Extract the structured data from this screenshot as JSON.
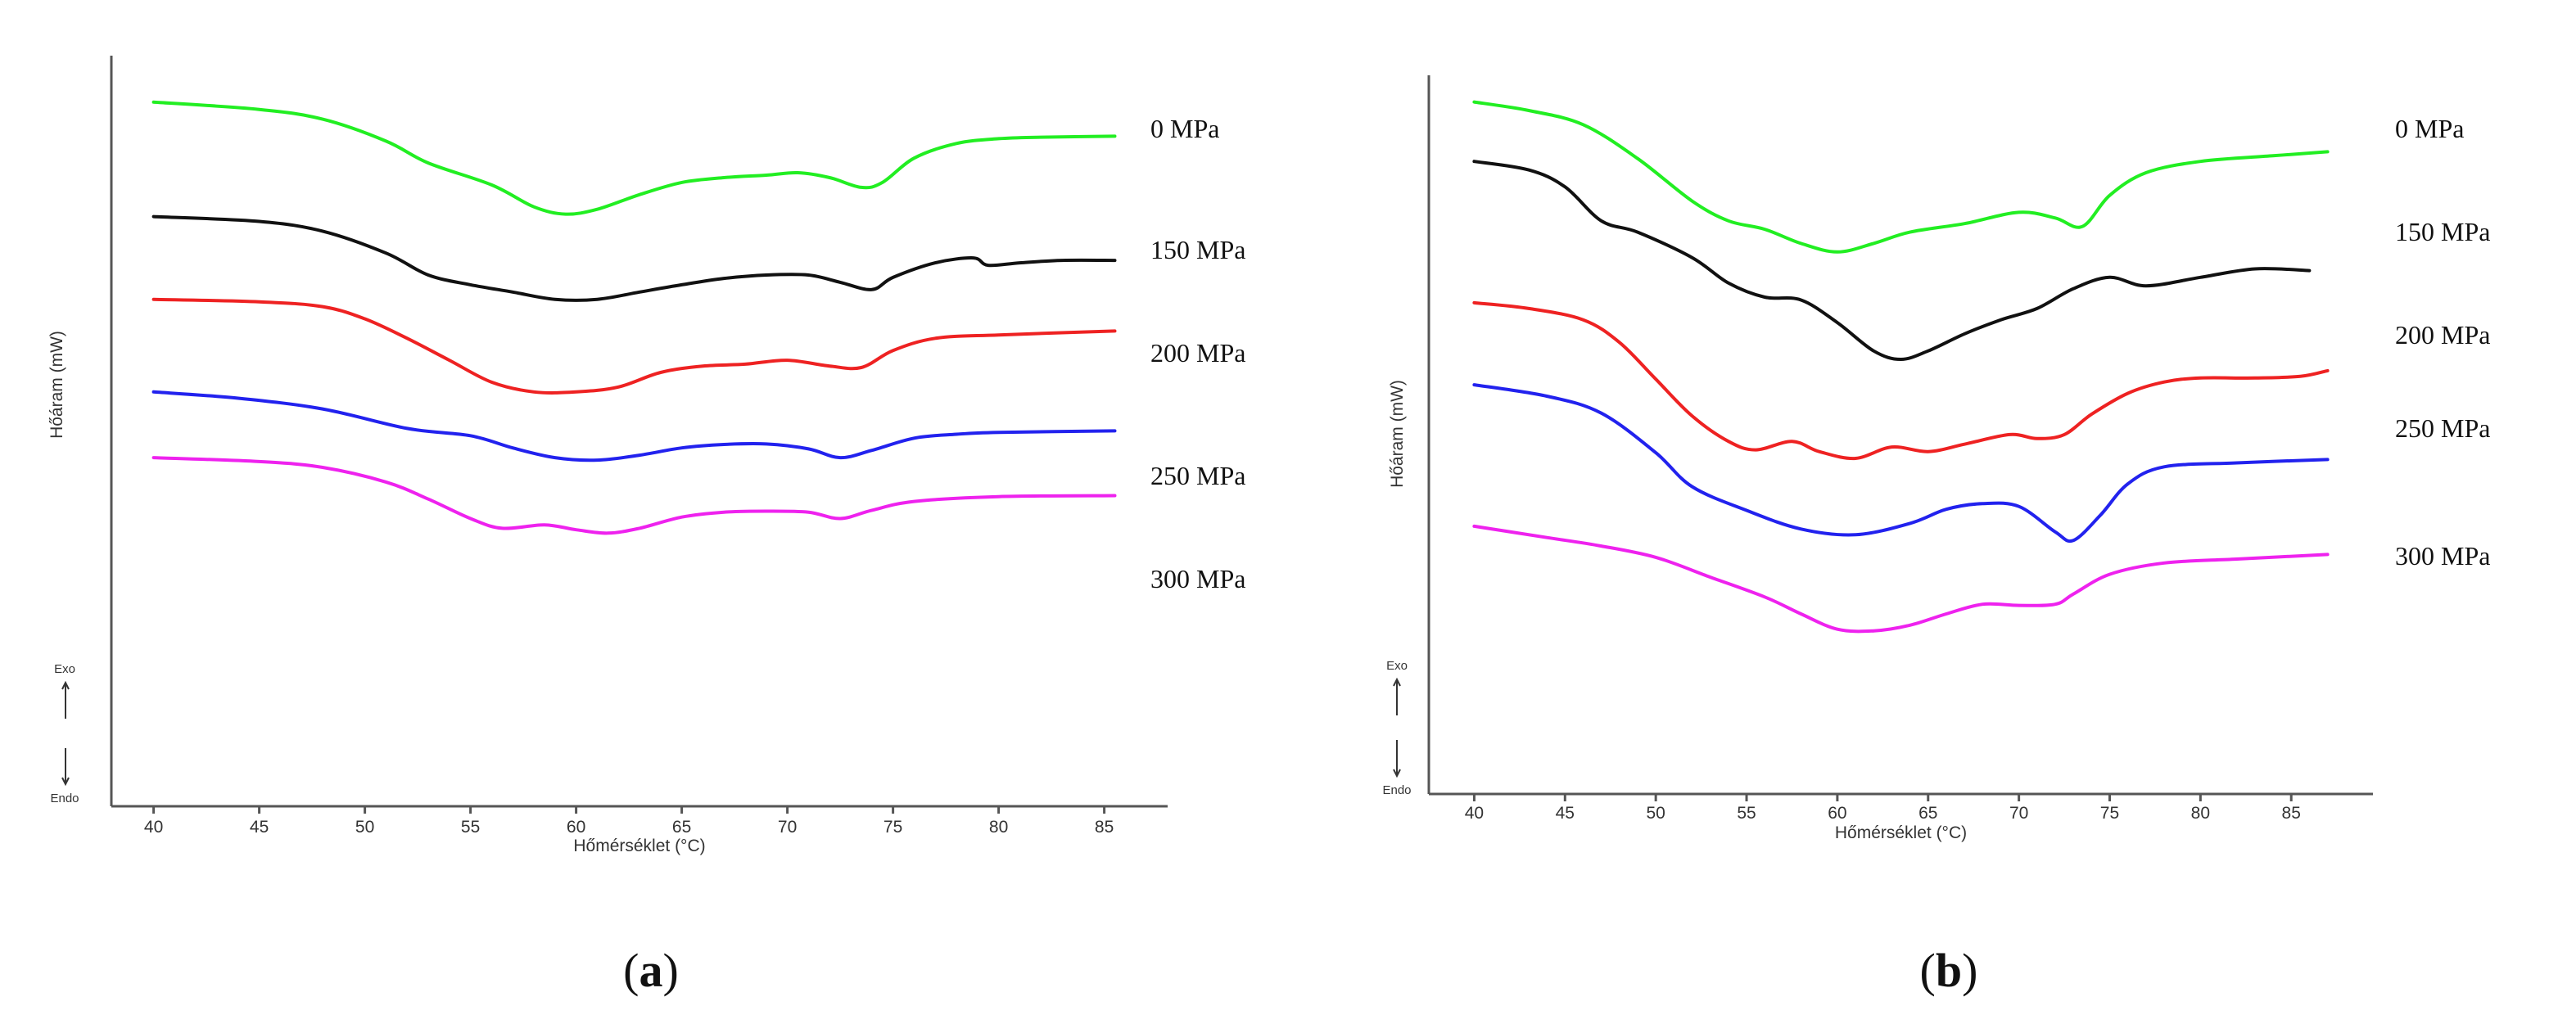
{
  "chart_data": [
    {
      "id": "a",
      "type": "line",
      "caption": {
        "open": "(",
        "letter": "a",
        "close": ")"
      },
      "xlabel": "Hőmérséklet (°C)",
      "ylabel": "Hőáram (mW)",
      "exo_label": "Exo",
      "endo_label": "Endo",
      "xlim": [
        38,
        88
      ],
      "ylim": [
        0,
        10
      ],
      "xticks": [
        40,
        45,
        50,
        55,
        60,
        65,
        70,
        75,
        80,
        85
      ],
      "grid": false,
      "series": [
        {
          "name": "0 MPa",
          "label": "0 MPa",
          "color": "#22ee22",
          "x": [
            40,
            45,
            48,
            51,
            53,
            56,
            58,
            59.5,
            61,
            63,
            65,
            67,
            69,
            70.5,
            72,
            73.5,
            74.5,
            76,
            78,
            80,
            82,
            85.5
          ],
          "y": [
            9.5,
            9.35,
            9.15,
            8.7,
            8.25,
            7.8,
            7.35,
            7.2,
            7.3,
            7.6,
            7.85,
            7.95,
            8.0,
            8.05,
            7.95,
            7.75,
            7.85,
            8.35,
            8.65,
            8.75,
            8.78,
            8.8
          ]
        },
        {
          "name": "150 MPa",
          "label": "150 MPa",
          "color": "#111111",
          "x": [
            40,
            45,
            48,
            51,
            53,
            55,
            57,
            59,
            61,
            63,
            65,
            67,
            69,
            71,
            72.5,
            74,
            75,
            77,
            78.8,
            79.5,
            81,
            83,
            85.5
          ],
          "y": [
            7.15,
            7.05,
            6.85,
            6.4,
            5.95,
            5.75,
            5.6,
            5.45,
            5.45,
            5.6,
            5.75,
            5.88,
            5.95,
            5.95,
            5.8,
            5.65,
            5.9,
            6.2,
            6.3,
            6.15,
            6.2,
            6.25,
            6.25
          ]
        },
        {
          "name": "200 MPa",
          "label": "200 MPa",
          "color": "#ee2222",
          "x": [
            40,
            45,
            48,
            50,
            52,
            54,
            56,
            58,
            60,
            62,
            64,
            66,
            68,
            70,
            72,
            73.5,
            75,
            77,
            80,
            85.5
          ],
          "y": [
            5.45,
            5.4,
            5.3,
            5.05,
            4.65,
            4.2,
            3.75,
            3.55,
            3.55,
            3.65,
            3.95,
            4.08,
            4.12,
            4.2,
            4.08,
            4.05,
            4.4,
            4.65,
            4.72,
            4.8
          ]
        },
        {
          "name": "250 MPa",
          "label": "250 MPa",
          "color": "#2222ee",
          "x": [
            40,
            44,
            48,
            52,
            55,
            57,
            59,
            61,
            63,
            65,
            67,
            69,
            71,
            72.5,
            74,
            76,
            78,
            80,
            85.5
          ],
          "y": [
            3.55,
            3.42,
            3.2,
            2.8,
            2.65,
            2.4,
            2.2,
            2.15,
            2.25,
            2.4,
            2.47,
            2.48,
            2.38,
            2.2,
            2.35,
            2.6,
            2.68,
            2.72,
            2.75
          ]
        },
        {
          "name": "300 MPa",
          "label": "300 MPa",
          "color": "#ee22ee",
          "x": [
            40,
            45,
            48,
            51,
            53,
            55,
            56.5,
            58.5,
            60,
            61.5,
            63,
            65,
            67,
            69,
            71,
            72.5,
            74,
            76,
            80,
            85.5
          ],
          "y": [
            2.2,
            2.12,
            2.0,
            1.7,
            1.35,
            0.95,
            0.75,
            0.82,
            0.72,
            0.65,
            0.75,
            0.98,
            1.08,
            1.1,
            1.08,
            0.95,
            1.12,
            1.3,
            1.4,
            1.42
          ]
        }
      ]
    },
    {
      "id": "b",
      "type": "line",
      "caption": {
        "open": "(",
        "letter": "b",
        "close": ")"
      },
      "xlabel": "Hőmérséklet (°C)",
      "ylabel": "Hőáram (mW)",
      "exo_label": "Exo",
      "endo_label": "Endo",
      "xlim": [
        37.5,
        89.5
      ],
      "ylim": [
        0,
        10
      ],
      "xticks": [
        40,
        45,
        50,
        55,
        60,
        65,
        70,
        75,
        80,
        85
      ],
      "grid": false,
      "series": [
        {
          "name": "0 MPa",
          "label": "0 MPa",
          "color": "#22ee22",
          "x": [
            40,
            43,
            46,
            49,
            52,
            54,
            56,
            58,
            60,
            62,
            64,
            67,
            70,
            72,
            73.5,
            75,
            77,
            80,
            84,
            87
          ],
          "y": [
            9.6,
            9.45,
            9.2,
            8.6,
            7.85,
            7.5,
            7.35,
            7.1,
            6.95,
            7.1,
            7.3,
            7.45,
            7.65,
            7.55,
            7.4,
            7.95,
            8.35,
            8.55,
            8.65,
            8.72
          ]
        },
        {
          "name": "150 MPa",
          "label": "150 MPa",
          "color": "#111111",
          "x": [
            40,
            43,
            45,
            47,
            49,
            52,
            54,
            56,
            58,
            60,
            62,
            63.5,
            65,
            67,
            69,
            71,
            73,
            75,
            77,
            80,
            83,
            86
          ],
          "y": [
            8.55,
            8.4,
            8.1,
            7.5,
            7.3,
            6.85,
            6.4,
            6.15,
            6.1,
            5.7,
            5.2,
            5.05,
            5.2,
            5.5,
            5.75,
            5.95,
            6.3,
            6.5,
            6.35,
            6.5,
            6.65,
            6.62
          ]
        },
        {
          "name": "200 MPa",
          "label": "200 MPa",
          "color": "#ee2222",
          "x": [
            40,
            43,
            46,
            48,
            50,
            52,
            54,
            55.5,
            57.5,
            59,
            61,
            63,
            65,
            67,
            69.5,
            71,
            72.5,
            74,
            76,
            78,
            80,
            83,
            85.5,
            87
          ],
          "y": [
            6.05,
            5.95,
            5.75,
            5.35,
            4.7,
            4.05,
            3.6,
            3.45,
            3.6,
            3.42,
            3.3,
            3.5,
            3.42,
            3.55,
            3.72,
            3.65,
            3.72,
            4.08,
            4.45,
            4.65,
            4.72,
            4.72,
            4.75,
            4.85
          ]
        },
        {
          "name": "250 MPa",
          "label": "250 MPa",
          "color": "#2222ee",
          "x": [
            40,
            44,
            47,
            50,
            52,
            55,
            58,
            61,
            64,
            66,
            68,
            70,
            72,
            73,
            74.5,
            76,
            78,
            82,
            87
          ],
          "y": [
            4.6,
            4.4,
            4.1,
            3.4,
            2.8,
            2.38,
            2.05,
            1.95,
            2.15,
            2.4,
            2.5,
            2.45,
            2.0,
            1.85,
            2.3,
            2.85,
            3.15,
            3.22,
            3.28
          ]
        },
        {
          "name": "300 MPa",
          "label": "300 MPa",
          "color": "#ee22ee",
          "x": [
            40,
            44,
            47,
            50,
            53,
            56,
            58,
            60,
            62,
            64,
            66,
            68,
            70,
            72,
            73,
            75,
            78,
            82,
            87
          ],
          "y": [
            2.1,
            1.9,
            1.75,
            1.55,
            1.2,
            0.85,
            0.55,
            0.28,
            0.25,
            0.35,
            0.55,
            0.72,
            0.7,
            0.72,
            0.9,
            1.25,
            1.45,
            1.52,
            1.6
          ]
        }
      ]
    }
  ]
}
